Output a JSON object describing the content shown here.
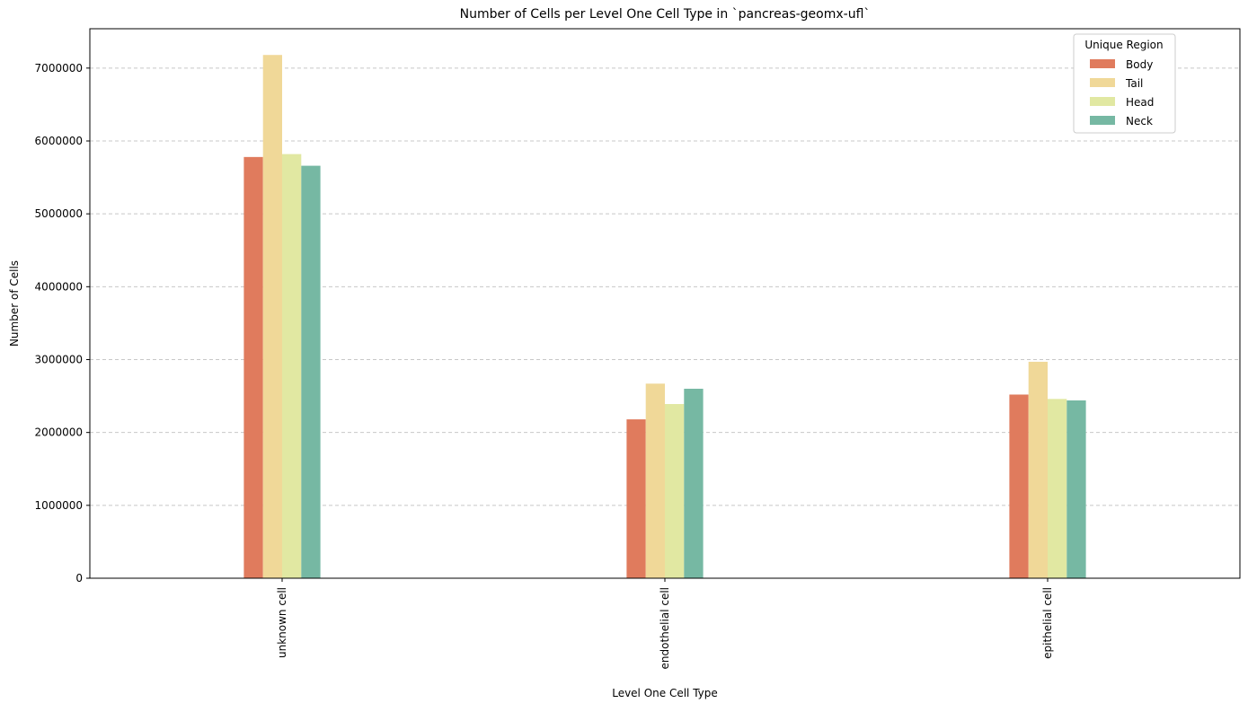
{
  "chart_data": {
    "type": "bar",
    "title": "Number of Cells per Level One Cell Type in `pancreas-geomx-ufl`",
    "xlabel": "Level One Cell Type",
    "ylabel": "Number of Cells",
    "categories": [
      "unknown cell",
      "endothelial cell",
      "epithelial cell"
    ],
    "series": [
      {
        "name": "Body",
        "color": "#e07b5d",
        "values": [
          5780000,
          2180000,
          2520000
        ]
      },
      {
        "name": "Tail",
        "color": "#f0d898",
        "values": [
          7180000,
          2670000,
          2970000
        ]
      },
      {
        "name": "Head",
        "color": "#e1e8a2",
        "values": [
          5820000,
          2390000,
          2460000
        ]
      },
      {
        "name": "Neck",
        "color": "#76b8a3",
        "values": [
          5660000,
          2600000,
          2440000
        ]
      }
    ],
    "yticks": [
      0,
      1000000,
      2000000,
      3000000,
      4000000,
      5000000,
      6000000,
      7000000
    ],
    "ytick_labels": [
      "0",
      "1000000",
      "2000000",
      "3000000",
      "4000000",
      "5000000",
      "6000000",
      "7000000"
    ],
    "ylim": [
      0,
      7540000
    ],
    "grid": "y-dashed",
    "legend": {
      "title": "Unique Region",
      "placement": "top-right"
    }
  }
}
